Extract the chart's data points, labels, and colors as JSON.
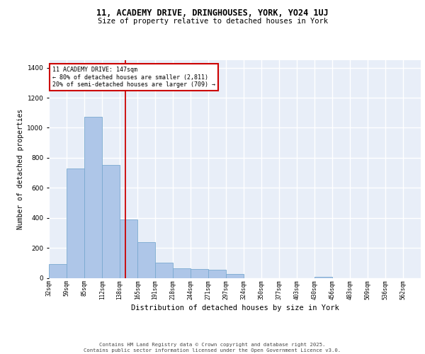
{
  "title1": "11, ACADEMY DRIVE, DRINGHOUSES, YORK, YO24 1UJ",
  "title2": "Size of property relative to detached houses in York",
  "xlabel": "Distribution of detached houses by size in York",
  "ylabel": "Number of detached properties",
  "bins": [
    "32sqm",
    "59sqm",
    "85sqm",
    "112sqm",
    "138sqm",
    "165sqm",
    "191sqm",
    "218sqm",
    "244sqm",
    "271sqm",
    "297sqm",
    "324sqm",
    "350sqm",
    "377sqm",
    "403sqm",
    "430sqm",
    "456sqm",
    "483sqm",
    "509sqm",
    "536sqm",
    "562sqm"
  ],
  "bin_edges": [
    32,
    59,
    85,
    112,
    138,
    165,
    191,
    218,
    244,
    271,
    297,
    324,
    350,
    377,
    403,
    430,
    456,
    483,
    509,
    536,
    562
  ],
  "values": [
    90,
    730,
    1075,
    750,
    390,
    240,
    100,
    65,
    60,
    55,
    25,
    0,
    0,
    0,
    0,
    5,
    0,
    0,
    0,
    0,
    0
  ],
  "bar_color": "#aec6e8",
  "bar_edge_color": "#7aaad0",
  "property_line_x": 147,
  "property_line_color": "#cc0000",
  "annotation_line1": "11 ACADEMY DRIVE: 147sqm",
  "annotation_line2": "← 80% of detached houses are smaller (2,811)",
  "annotation_line3": "20% of semi-detached houses are larger (709) →",
  "annotation_box_color": "#cc0000",
  "ylim": [
    0,
    1450
  ],
  "yticks": [
    0,
    200,
    400,
    600,
    800,
    1000,
    1200,
    1400
  ],
  "background_color": "#e8eef8",
  "grid_color": "#ffffff",
  "footer1": "Contains HM Land Registry data © Crown copyright and database right 2025.",
  "footer2": "Contains public sector information licensed under the Open Government Licence v3.0."
}
